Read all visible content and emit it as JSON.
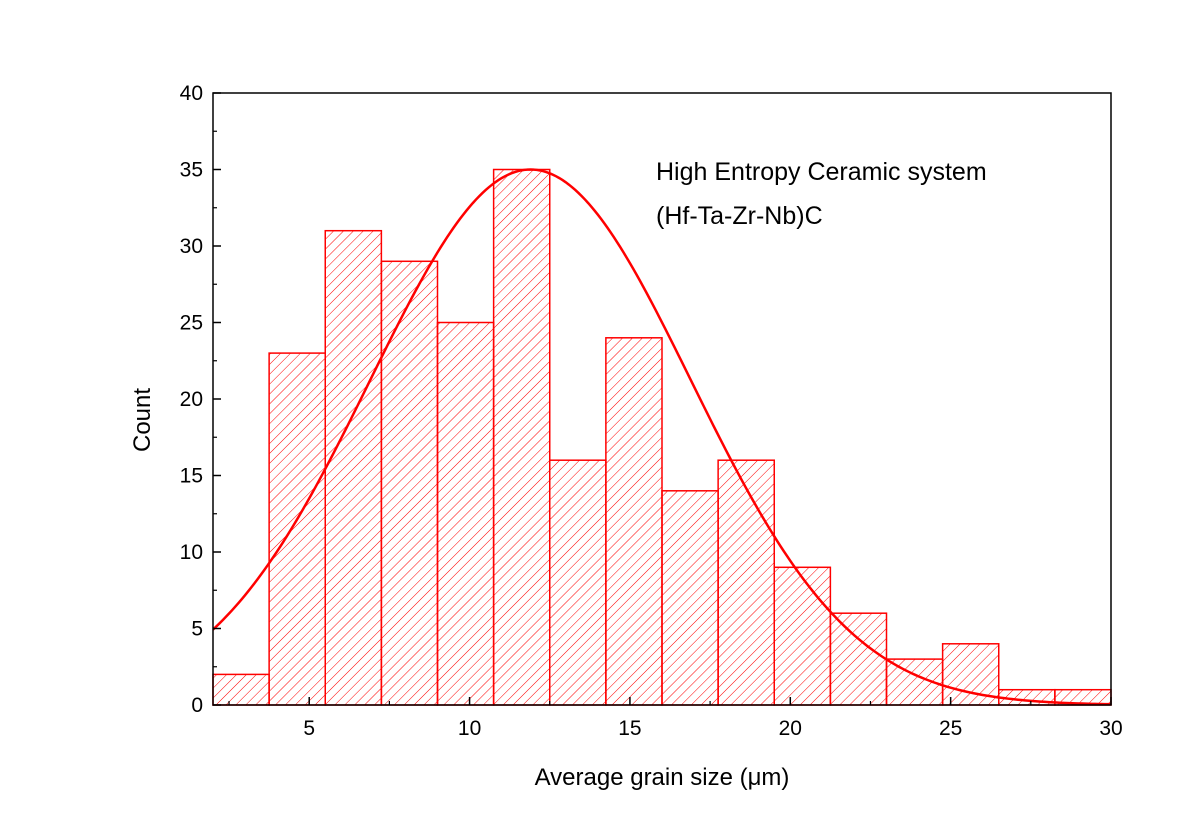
{
  "chart_data": {
    "type": "bar",
    "xlabel": "Average grain size (μm)",
    "ylabel": "Count",
    "xlim": [
      2,
      30
    ],
    "ylim": [
      0,
      40
    ],
    "x_ticks": [
      5,
      10,
      15,
      20,
      25,
      30
    ],
    "y_ticks": [
      0,
      5,
      10,
      15,
      20,
      25,
      30,
      35,
      40
    ],
    "bin_edges": [
      2.0,
      3.75,
      5.5,
      7.25,
      9.0,
      10.75,
      12.5,
      14.25,
      16.0,
      17.75,
      19.5,
      21.25,
      23.0,
      24.75,
      26.5,
      28.25,
      30.0
    ],
    "values": [
      2,
      23,
      31,
      29,
      25,
      35,
      16,
      24,
      14,
      16,
      9,
      6,
      3,
      4,
      1,
      1
    ],
    "fit_curve": {
      "type": "normal",
      "mean": 11.9,
      "sigma": 5.0,
      "peak": 35
    },
    "annotation": [
      "High Entropy Ceramic system",
      "(Hf-Ta-Zr-Nb)C"
    ],
    "colors": {
      "bar": "#ff0000",
      "curve": "#ff0000",
      "axis": "#000000"
    },
    "bar_fill": "diagonal hatch",
    "grid": false
  }
}
